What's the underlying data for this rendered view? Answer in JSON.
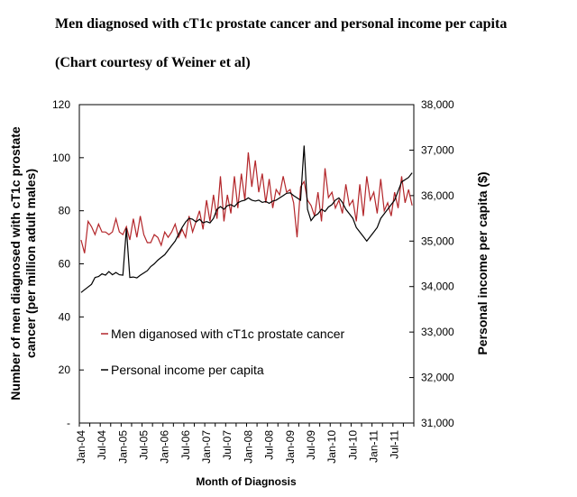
{
  "chart_data": {
    "type": "line",
    "title": "Men diagnosed with cT1c prostate cancer and personal income per capita",
    "subtitle": "(Chart courtesy of Weiner et al)",
    "xlabel": "Month of Diagnosis",
    "ylabel_left": "Number of men diagnosed with cT1c prostate cancer (per million adult males)",
    "ylabel_right": "Personal income per capita ($)",
    "ylim_left": [
      0,
      120
    ],
    "ylim_right": [
      31000,
      38000
    ],
    "left_ticks": [
      "-",
      "20",
      "40",
      "60",
      "80",
      "100",
      "120"
    ],
    "right_ticks": [
      "31,000",
      "32,000",
      "33,000",
      "34,000",
      "35,000",
      "36,000",
      "37,000",
      "38,000"
    ],
    "x_ticks": [
      "Jan-04",
      "Jul-04",
      "Jan-05",
      "Jul-05",
      "Jan-06",
      "Jul-06",
      "Jan-07",
      "Jul-07",
      "Jan-08",
      "Jul-08",
      "Jan-09",
      "Jul-09",
      "Jan-10",
      "Jul-10",
      "Jan-11",
      "Jul-11"
    ],
    "n_months": 96,
    "series": [
      {
        "name": "Men diganosed with cT1c prostate cancer",
        "color": "#b3262a",
        "axis": "left",
        "values": [
          69,
          64,
          76,
          74,
          71,
          75,
          72,
          72,
          71,
          72,
          77,
          72,
          71,
          74,
          69,
          77,
          70,
          78,
          71,
          68,
          68,
          71,
          70,
          67,
          72,
          70,
          72,
          75,
          70,
          73,
          70,
          78,
          72,
          76,
          80,
          73,
          84,
          76,
          86,
          77,
          93,
          76,
          86,
          79,
          93,
          81,
          94,
          84,
          102,
          89,
          99,
          87,
          94,
          83,
          92,
          81,
          88,
          86,
          93,
          87,
          88,
          83,
          70,
          89,
          91,
          84,
          82,
          78,
          87,
          76,
          96,
          85,
          87,
          81,
          84,
          79,
          90,
          82,
          84,
          76,
          90,
          78,
          93,
          84,
          87,
          79,
          92,
          80,
          83,
          78,
          87,
          81,
          93,
          83,
          88,
          82
        ]
      },
      {
        "name": "Personal income per capita",
        "color": "#000000",
        "axis": "right",
        "values": [
          33870,
          33930,
          33990,
          34050,
          34200,
          34220,
          34280,
          34250,
          34330,
          34260,
          34310,
          34260,
          34250,
          35280,
          34200,
          34210,
          34190,
          34250,
          34300,
          34350,
          34440,
          34500,
          34580,
          34640,
          34700,
          34800,
          34900,
          35000,
          35150,
          35300,
          35420,
          35500,
          35480,
          35420,
          35480,
          35400,
          35430,
          35400,
          35500,
          35700,
          35760,
          35700,
          35780,
          35800,
          35760,
          35840,
          35880,
          35900,
          35950,
          35900,
          35880,
          35900,
          35850,
          35870,
          35830,
          35880,
          35900,
          35950,
          36000,
          36050,
          36060,
          36000,
          35950,
          35900,
          37100,
          35700,
          35450,
          35550,
          35600,
          35700,
          35650,
          35750,
          35800,
          35900,
          35950,
          35850,
          35700,
          35600,
          35500,
          35300,
          35200,
          35100,
          35000,
          35100,
          35200,
          35300,
          35500,
          35600,
          35700,
          35800,
          35900,
          36100,
          36300,
          36350,
          36400,
          36500
        ]
      }
    ]
  }
}
